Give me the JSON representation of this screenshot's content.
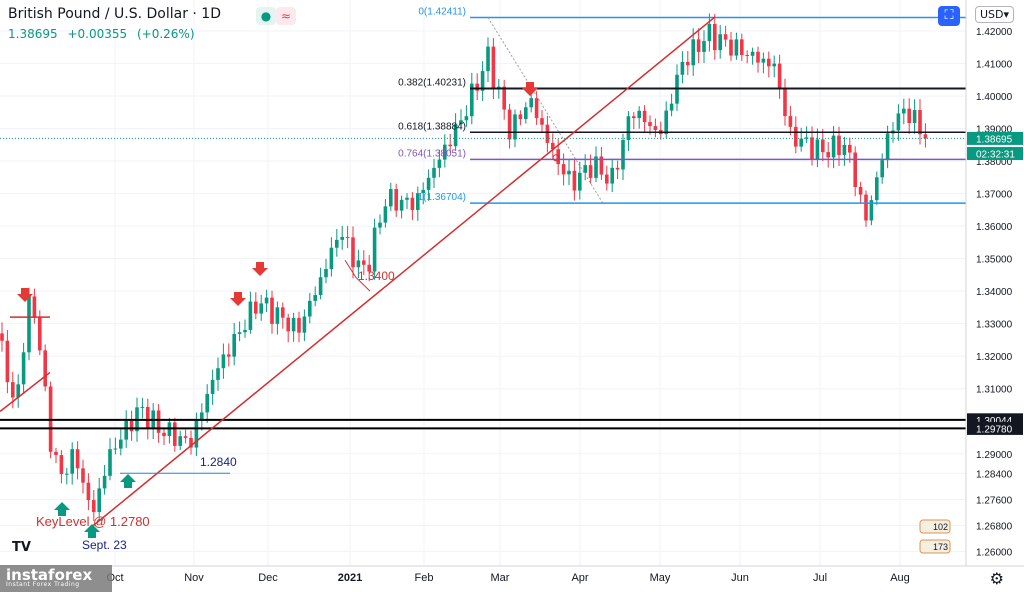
{
  "header": {
    "title": "British Pound / U.S. Dollar · 1D",
    "last": "1.38695",
    "change": "+0.00355",
    "change_pct": "(+0.26%)",
    "currency": "USD▾"
  },
  "chart_data": {
    "type": "candlestick",
    "price_axis": {
      "range": [
        1.2555,
        1.4295
      ],
      "labels": [
        "1.42000",
        "1.41000",
        "1.40000",
        "1.39000",
        "1.38000",
        "1.37000",
        "1.36000",
        "1.35000",
        "1.34000",
        "1.33000",
        "1.32000",
        "1.31000",
        "1.29000",
        "1.28400",
        "1.27600",
        "1.26800",
        "1.26000"
      ]
    },
    "time_axis": [
      "Oct",
      "Nov",
      "Dec",
      "2021",
      "Feb",
      "Mar",
      "Apr",
      "May",
      "Jun",
      "Jul",
      "Aug"
    ],
    "price_tags": [
      {
        "text": "1.38695",
        "value": 1.38695,
        "bg": "#089981"
      },
      {
        "text": "02:32:31",
        "value": 1.3823,
        "bg": "#089981"
      },
      {
        "text": "1.30044",
        "value": 1.30044,
        "bg": "#131722"
      },
      {
        "text": "1.29780",
        "value": 1.2978,
        "bg": "#131722"
      }
    ],
    "fib_levels": [
      {
        "label": "0(1.42411)",
        "value": 1.42411,
        "color": "#2196f3"
      },
      {
        "label": "0.382(1.40231)",
        "value": 1.40231,
        "color": "#131722"
      },
      {
        "label": "0.618(1.38884)",
        "value": 1.38884,
        "color": "#131722"
      },
      {
        "label": "0.764(1.38051)",
        "value": 1.38051,
        "color": "#7e57c2"
      },
      {
        "label": "1(1.36704)",
        "value": 1.36704,
        "color": "#2196f3"
      }
    ],
    "horizontal_lines": [
      1.30044,
      1.2978
    ],
    "annotations": [
      {
        "text": "1.3400",
        "color": "#d32f2f"
      },
      {
        "text": "1.2840",
        "color": "#1a237e"
      },
      {
        "text": "KeyLevel @ 1.2780",
        "color": "#d32f2f"
      },
      {
        "text": "Sept. 23",
        "color": "#1a237e"
      }
    ],
    "key_points": [
      {
        "label": "Sept. 23 low",
        "value": 1.2676
      },
      {
        "label": "1.3400 pullback",
        "value": 1.34
      },
      {
        "label": "Feb high",
        "value": 1.4241
      },
      {
        "label": "Jun high",
        "value": 1.4249
      },
      {
        "label": "Jul low",
        "value": 1.3572
      },
      {
        "label": "last",
        "value": 1.38695
      }
    ],
    "events": [
      {
        "icon": "calendar-event",
        "count": "102"
      },
      {
        "icon": "calendar-event",
        "count": "173"
      }
    ],
    "colors": {
      "up": "#089981",
      "down": "#f23645",
      "trendline": "#d32f2f"
    }
  },
  "branding": {
    "watermark": "instaforex",
    "watermark_sub": "Instant Forex Trading",
    "tv": "TV"
  }
}
